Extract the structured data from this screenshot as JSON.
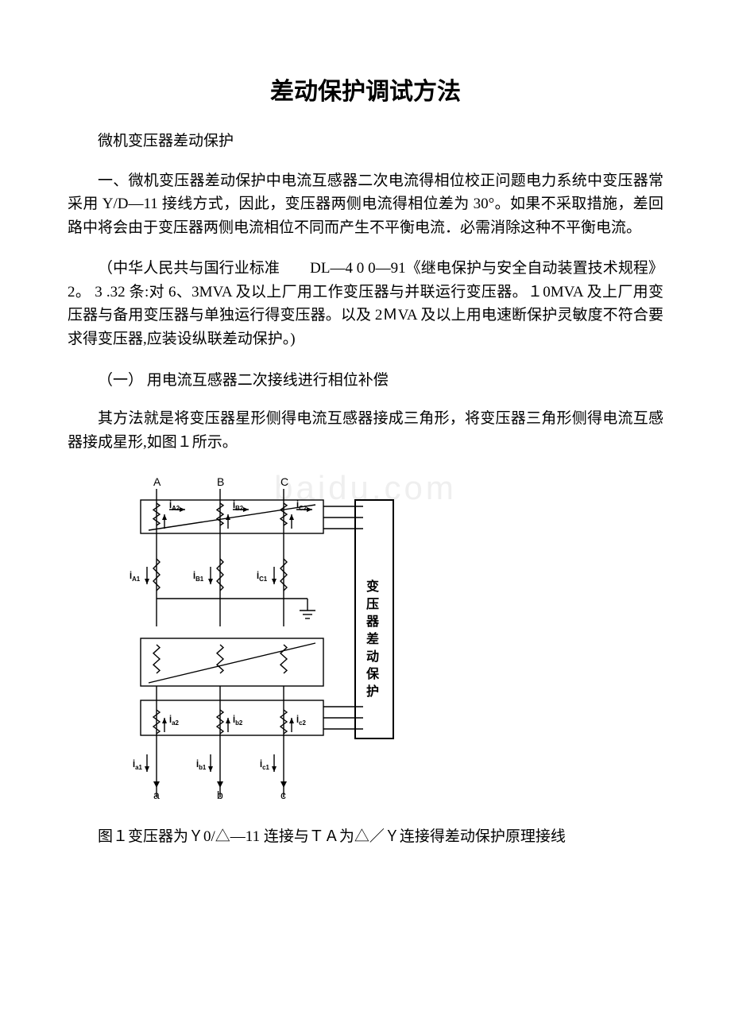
{
  "document": {
    "title": "差动保护调试方法",
    "subtitle": "微机变压器差动保护",
    "para1": "一、微机变压器差动保护中电流互感器二次电流得相位校正问题电力系统中变压器常采用 Y/D—11 接线方式，因此，变压器两侧电流得相位差为 30°。如果不采取措施，差回路中将会由于变压器两侧电流相位不同而产生不平衡电流．必需消除这种不平衡电流。",
    "para2": "（中华人民共与国行业标准　　DL—4 0 0—91《继电保护与安全自动装置技术规程》2。 3 .32 条:对 6、3MVA 及以上厂用工作变压器与并联运行变压器。１0MVA 及上厂用变压器与备用变压器与单独运行得变压器。以及 2ＭVA 及以上用电速断保护灵敏度不符合要求得变压器,应装设纵联差动保护。)",
    "section1": "（一） 用电流互感器二次接线进行相位补偿",
    "para3": "其方法就是将变压器星形侧得电流互感器接成三角形，将变压器三角形侧得电流互感器接成星形,如图１所示。",
    "caption": "图１变压器为Ｙ0/△—11 连接与ＴＡ为△／Ｙ连接得差动保护原理接线",
    "watermark": "baidu.com"
  },
  "diagram": {
    "background": "#ffffff",
    "stroke": "#000000",
    "stroke_width": 1.4,
    "font_size_label": 13,
    "font_size_small": 11,
    "top_labels": [
      "A",
      "B",
      "C"
    ],
    "bottom_labels": [
      "a",
      "b",
      "c"
    ],
    "i_top_sec": [
      "İ",
      "İ",
      "İ"
    ],
    "i_top_sec_sub": [
      "A2",
      "B2",
      "C2"
    ],
    "i_top_pri": [
      "İ",
      "İ",
      "İ"
    ],
    "i_top_pri_sub": [
      "A1",
      "B1",
      "C1"
    ],
    "i_bot_sec": [
      "İ",
      "İ",
      "İ"
    ],
    "i_bot_sec_sub": [
      "a2",
      "b2",
      "c2"
    ],
    "i_bot_pri": [
      "İ",
      "İ",
      "İ"
    ],
    "i_bot_pri_sub": [
      "a1",
      "b1",
      "c1"
    ],
    "side_text": [
      "变",
      "压",
      "器",
      "差",
      "动",
      "保",
      "护"
    ]
  }
}
